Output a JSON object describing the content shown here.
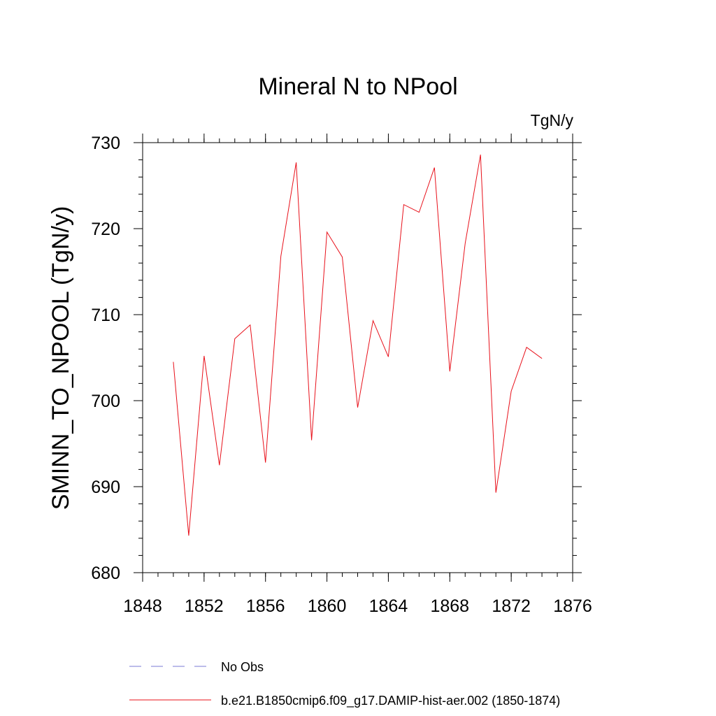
{
  "chart_data": {
    "type": "line",
    "title": "Mineral N to NPool",
    "units_label": "TgN/y",
    "ylabel": "SMINN_TO_NPOOL  (TgN/y)",
    "xlabel": "",
    "xlim": [
      1848,
      1876
    ],
    "ylim": [
      680,
      730
    ],
    "x_ticks": [
      1848,
      1852,
      1856,
      1860,
      1864,
      1868,
      1872,
      1876
    ],
    "y_ticks": [
      680,
      690,
      700,
      710,
      720,
      730
    ],
    "x_tick_labels": [
      "1848",
      "1852",
      "1856",
      "1860",
      "1864",
      "1868",
      "1872",
      "1876"
    ],
    "y_tick_labels": [
      "680",
      "690",
      "700",
      "710",
      "720",
      "730"
    ],
    "grid": false,
    "legend_position": "bottom",
    "series": [
      {
        "name": "No Obs",
        "color": "#7a7ad6",
        "dash": "dashed",
        "x": [],
        "values": []
      },
      {
        "name": "b.e21.B1850cmip6.f09_g17.DAMIP-hist-aer.002 (1850-1874)",
        "color": "#e8101a",
        "dash": "solid",
        "x": [
          1850,
          1851,
          1852,
          1853,
          1854,
          1855,
          1856,
          1857,
          1858,
          1859,
          1860,
          1861,
          1862,
          1863,
          1864,
          1865,
          1866,
          1867,
          1868,
          1869,
          1870,
          1871,
          1872,
          1873,
          1874
        ],
        "values": [
          704.5,
          684.3,
          705.2,
          692.5,
          707.2,
          708.8,
          692.8,
          716.8,
          727.7,
          695.4,
          719.6,
          716.7,
          699.2,
          709.3,
          705.1,
          722.8,
          721.9,
          727.1,
          703.4,
          718.3,
          728.6,
          689.3,
          701.1,
          706.2,
          704.9
        ]
      }
    ]
  }
}
